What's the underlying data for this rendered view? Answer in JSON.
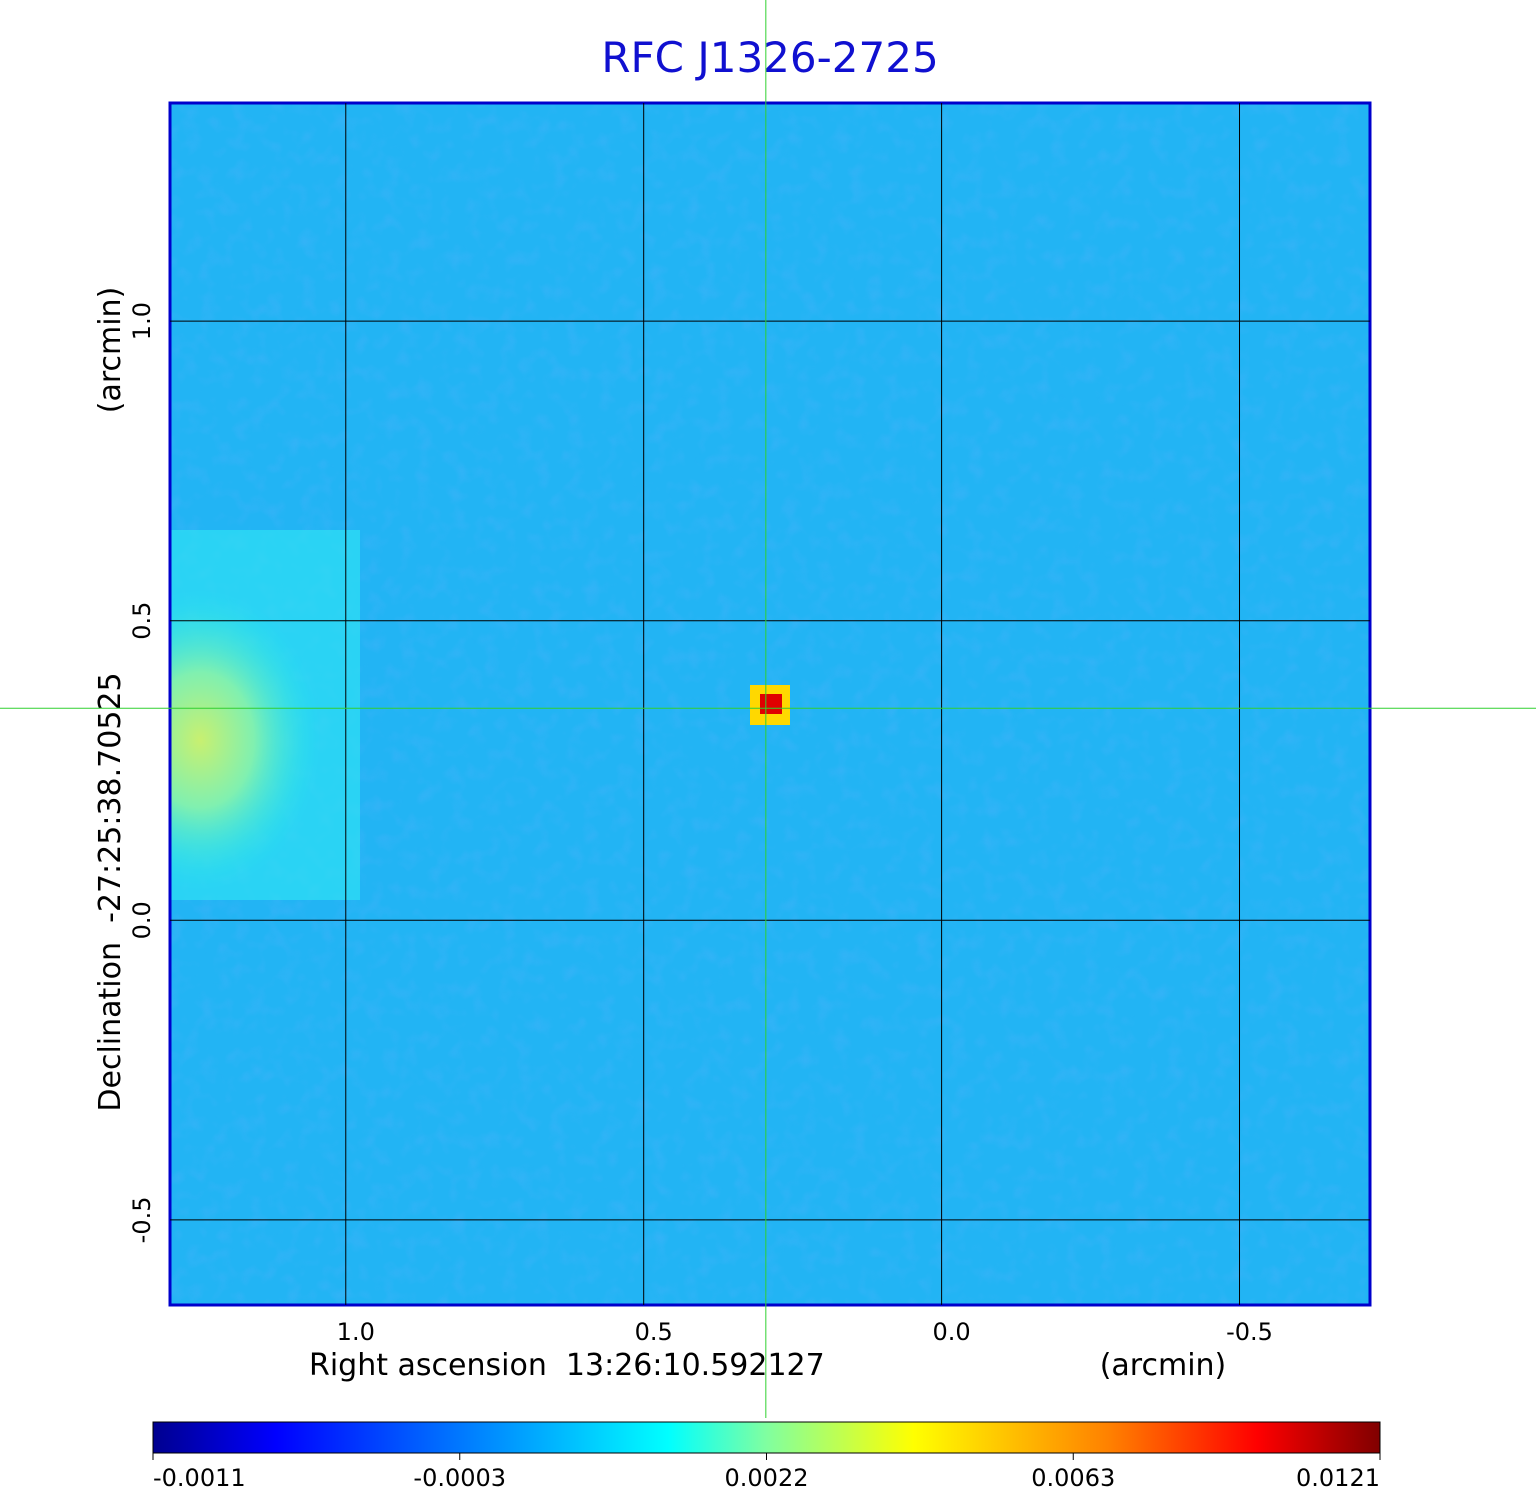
{
  "chart_data": {
    "type": "image",
    "title": "RFC J1326-2725",
    "xlabel": "Right ascension  13:26:10.592127",
    "xunit": "(arcmin)",
    "ylabel": "Declination  -27:25:38.70525",
    "yunit": "(arcmin)",
    "xlim": [
      1.295,
      -0.719
    ],
    "xticks": [
      {
        "value": 1.0,
        "label": "1.0"
      },
      0.5,
      {
        "value": 0.0,
        "label": "0.0"
      },
      -0.5
    ],
    "ylim": [
      -0.642,
      1.364
    ],
    "yticks": [
      -0.5,
      {
        "value": 0.0,
        "label": "0.0"
      },
      0.5,
      {
        "value": 1.0,
        "label": "1.0"
      }
    ],
    "grid": true,
    "crosshair": [
      0.295,
      0.354
    ],
    "colorbar": {
      "ticks": [
        -0.0011,
        -0.0003,
        0.0022,
        0.0063,
        0.0121
      ]
    }
  }
}
